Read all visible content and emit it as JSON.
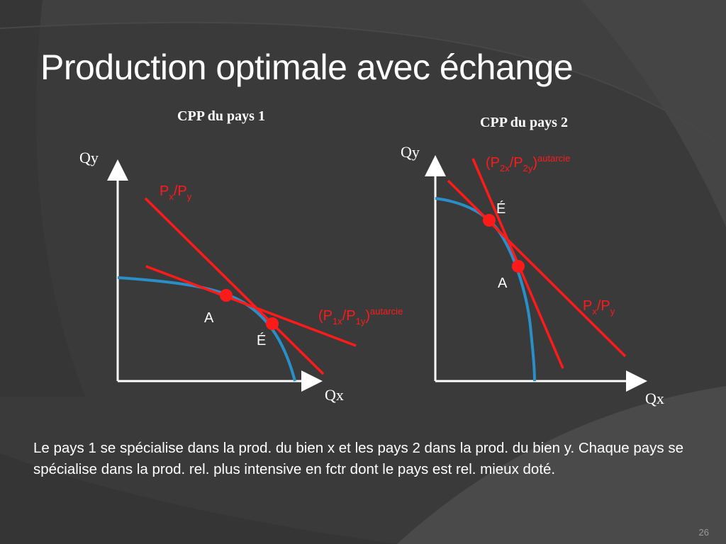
{
  "slide": {
    "title": "Production optimale avec échange",
    "caption": "Le pays 1 se spécialise dans la prod. du bien x et les pays 2 dans la prod. du bien y. Chaque pays se spécialise dans la prod. rel. plus intensive en fctr dont le pays est rel. mieux doté.",
    "page_number": "26"
  },
  "colors": {
    "background": "#3b3b3b",
    "text": "#ffffff",
    "price_line": "#ff1a1a",
    "ppf_curve": "#2a8fc9",
    "point": "#ff1a1a"
  },
  "diagram1": {
    "title": "CPP du pays 1",
    "y_axis_label": "Qy",
    "x_axis_label": "Qx",
    "world_price": {
      "main": "P",
      "sub1": "x",
      "sep": "/P",
      "sub2": "y"
    },
    "autarky_price": {
      "open": "(P",
      "sub1": "1x",
      "sep": "/P",
      "sub2": "1y",
      "close": ")",
      "sup": "autarcie"
    },
    "point_a_label": "A",
    "point_e_label": "É"
  },
  "diagram2": {
    "title": "CPP du pays 2",
    "y_axis_label": "Qy",
    "x_axis_label": "Qx",
    "world_price": {
      "main": "P",
      "sub1": "x",
      "sep": "/P",
      "sub2": "y"
    },
    "autarky_price": {
      "open": "(P",
      "sub1": "2x",
      "sep": "/P",
      "sub2": "2y",
      "close": ")",
      "sup": "autarcie"
    },
    "point_a_label": "A",
    "point_e_label": "É"
  }
}
